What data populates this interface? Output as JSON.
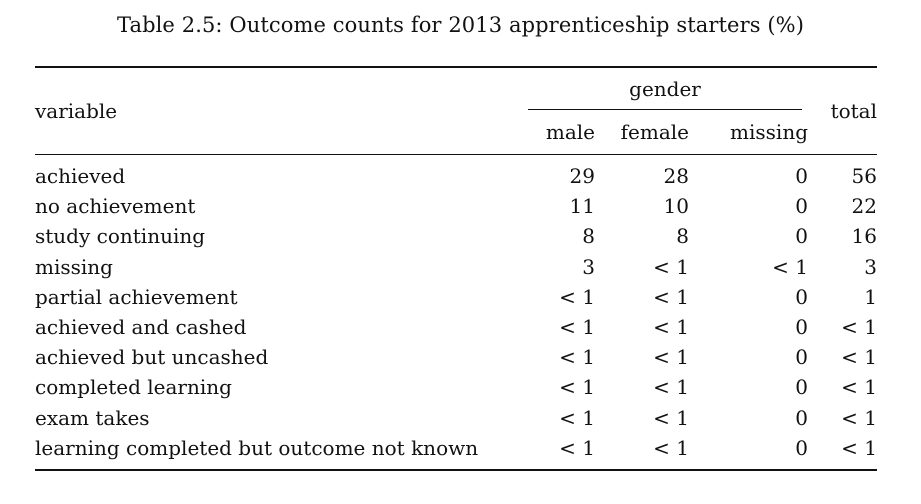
{
  "caption": "Table 2.5: Outcome counts for 2013 apprenticeship starters (%)",
  "table": {
    "headers": {
      "variable": "variable",
      "group": "gender",
      "total": "total",
      "sub": [
        "male",
        "female",
        "missing"
      ]
    },
    "rows": [
      {
        "variable": "achieved",
        "male": "29",
        "female": "28",
        "missing": "0",
        "total": "56"
      },
      {
        "variable": "no achievement",
        "male": "11",
        "female": "10",
        "missing": "0",
        "total": "22"
      },
      {
        "variable": "study continuing",
        "male": "8",
        "female": "8",
        "missing": "0",
        "total": "16"
      },
      {
        "variable": "missing",
        "male": "3",
        "female": "< 1",
        "missing": "< 1",
        "total": "3"
      },
      {
        "variable": "partial achievement",
        "male": "< 1",
        "female": "< 1",
        "missing": "0",
        "total": "1"
      },
      {
        "variable": "achieved and cashed",
        "male": "< 1",
        "female": "< 1",
        "missing": "0",
        "total": "< 1"
      },
      {
        "variable": "achieved but uncashed",
        "male": "< 1",
        "female": "< 1",
        "missing": "0",
        "total": "< 1"
      },
      {
        "variable": "completed learning",
        "male": "< 1",
        "female": "< 1",
        "missing": "0",
        "total": "< 1"
      },
      {
        "variable": "exam takes",
        "male": "< 1",
        "female": "< 1",
        "missing": "0",
        "total": "< 1"
      },
      {
        "variable": "learning completed but outcome not known",
        "male": "< 1",
        "female": "< 1",
        "missing": "0",
        "total": "< 1"
      }
    ]
  }
}
